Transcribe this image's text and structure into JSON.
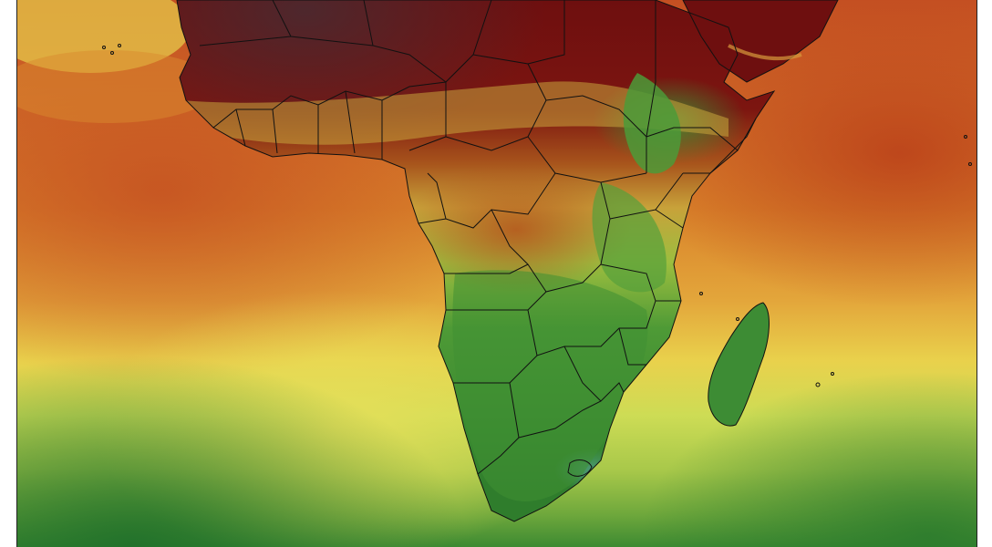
{
  "map": {
    "region": "Africa",
    "colors": {
      "very_dry_dark": "#3a1a18",
      "dry_dark": "#6e0f0f",
      "dry_red": "#8b1a12",
      "ocean_red": "#c85a25",
      "ocean_orange": "#d9822a",
      "ocean_light_orange": "#e3a63b",
      "ocean_yellow": "#e8d74d",
      "ocean_yellow_green": "#cddc55",
      "ocean_light_green": "#a8c84a",
      "ocean_green": "#6fa83c",
      "forest_green": "#2f7d2c",
      "deep_green": "#1e6b2a",
      "border_line": "#111111"
    }
  }
}
